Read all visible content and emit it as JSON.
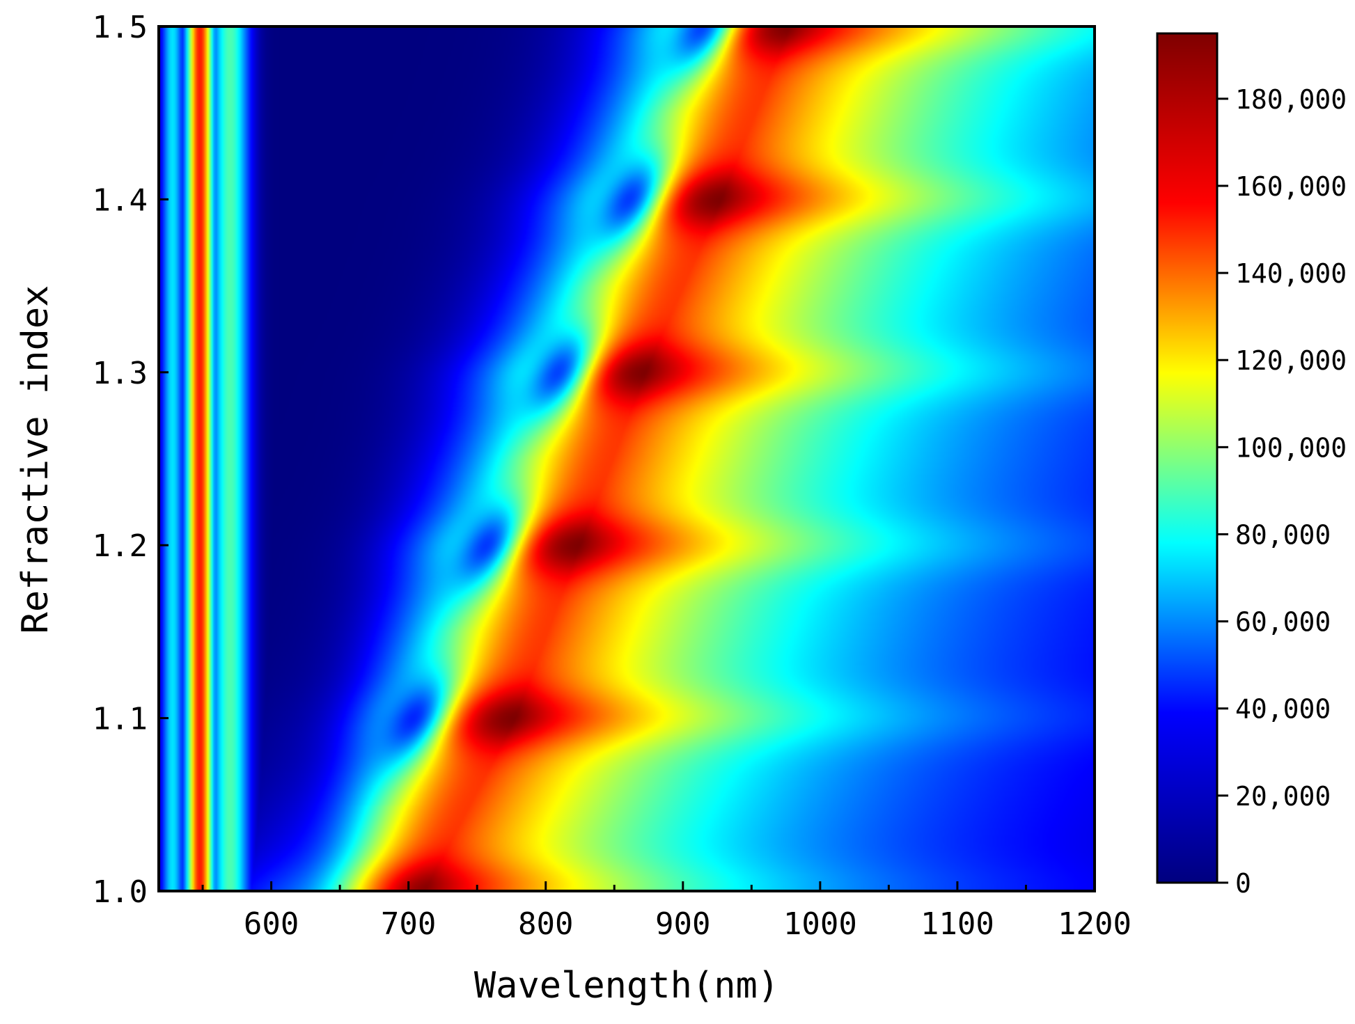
{
  "chart_data": {
    "type": "heatmap",
    "title": "",
    "xlabel": "Wavelength(nm)",
    "ylabel": "Refractive index",
    "xlim": [
      518,
      1200
    ],
    "ylim": [
      1.0,
      1.5
    ],
    "x_ticks": [
      "600",
      "700",
      "800",
      "900",
      "1000",
      "1100",
      "1200"
    ],
    "x_tick_values": [
      600,
      700,
      800,
      900,
      1000,
      1100,
      1200
    ],
    "x_minor_tick_values": [
      550,
      650,
      750,
      850,
      950,
      1050,
      1150
    ],
    "y_ticks": [
      "1.0",
      "1.1",
      "1.2",
      "1.3",
      "1.4",
      "1.5"
    ],
    "y_tick_values": [
      1.0,
      1.1,
      1.2,
      1.3,
      1.4,
      1.5
    ],
    "colorbar": {
      "min": 0,
      "max": 195000,
      "ticks": [
        "0",
        "20,000",
        "40,000",
        "60,000",
        "80,000",
        "100,000",
        "120,000",
        "140,000",
        "160,000",
        "180,000"
      ],
      "tick_values": [
        0,
        20000,
        40000,
        60000,
        80000,
        100000,
        120000,
        140000,
        160000,
        180000
      ],
      "colormap": "jet",
      "colors": [
        "#00007f",
        "#0000ff",
        "#00ffff",
        "#ffff00",
        "#ff0000",
        "#7f0000"
      ]
    },
    "features": {
      "main_peak_ridge": {
        "refractive_index": [
          1.0,
          1.1,
          1.2,
          1.3,
          1.4,
          1.5
        ],
        "wavelength_nm": [
          712,
          778,
          825,
          873,
          928,
          978
        ],
        "max_value": 195000
      },
      "dips": {
        "refractive_index": [
          1.1,
          1.2,
          1.3,
          1.4,
          1.5
        ],
        "wavelength_nm": [
          705,
          758,
          810,
          862,
          915
        ],
        "value": 40000
      },
      "low_band_center_wavelength_nm": 625,
      "low_band_value": 5000,
      "short_wavelength_peak_nm": 548,
      "short_wavelength_peak_value": 165000
    }
  }
}
